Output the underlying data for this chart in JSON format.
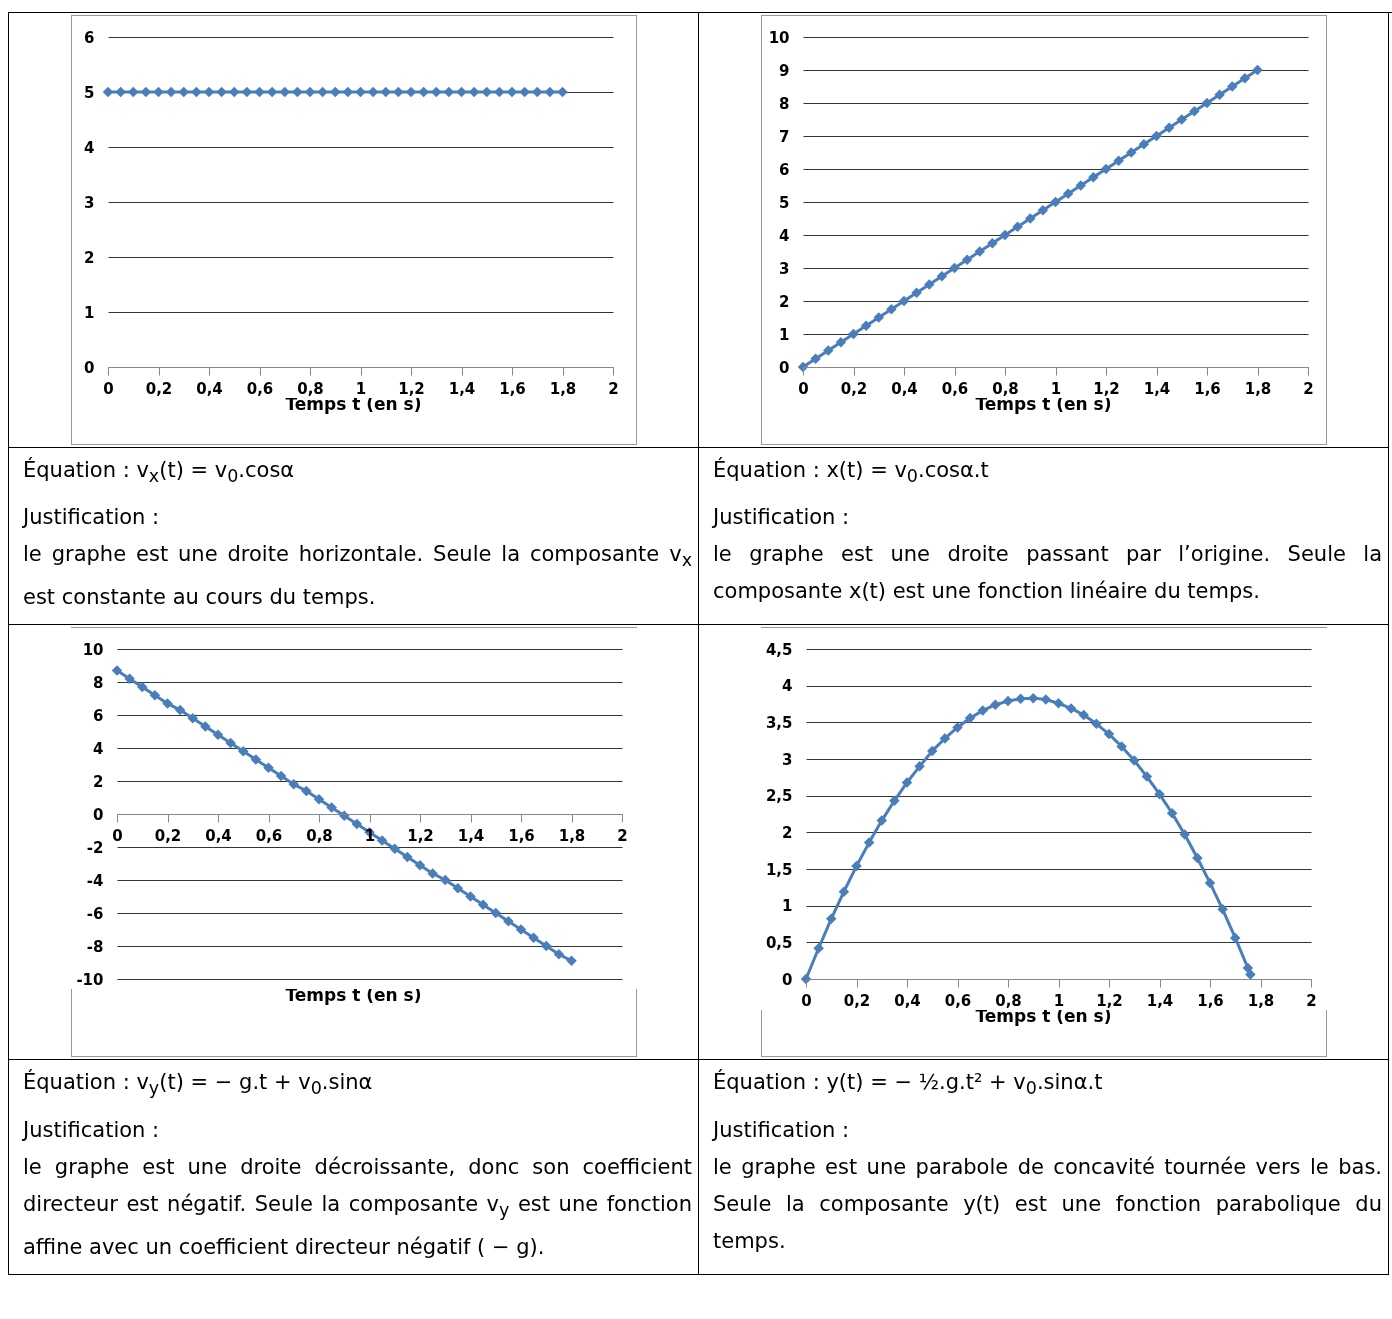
{
  "chart_data": [
    {
      "type": "line",
      "xlabel": "Temps  t (en s)",
      "marker": "diamond",
      "line_style": "solid",
      "grid": "y",
      "x": [
        0,
        0.05,
        0.1,
        0.15,
        0.2,
        0.25,
        0.3,
        0.35,
        0.4,
        0.45,
        0.5,
        0.55,
        0.6,
        0.65,
        0.7,
        0.75,
        0.8,
        0.85,
        0.9,
        0.95,
        1,
        1.05,
        1.1,
        1.15,
        1.2,
        1.25,
        1.3,
        1.35,
        1.4,
        1.45,
        1.5,
        1.55,
        1.6,
        1.65,
        1.7,
        1.75,
        1.8
      ],
      "series": [
        {
          "color": "#4a7ebb",
          "values": [
            5,
            5,
            5,
            5,
            5,
            5,
            5,
            5,
            5,
            5,
            5,
            5,
            5,
            5,
            5,
            5,
            5,
            5,
            5,
            5,
            5,
            5,
            5,
            5,
            5,
            5,
            5,
            5,
            5,
            5,
            5,
            5,
            5,
            5,
            5,
            5,
            5
          ]
        }
      ],
      "xlim": [
        0,
        2
      ],
      "xticks": [
        0,
        {
          "value": 0.2,
          "label": "0,2"
        },
        {
          "value": 0.4,
          "label": "0,4"
        },
        {
          "value": 0.6,
          "label": "0,6"
        },
        {
          "value": 0.8,
          "label": "0,8"
        },
        1,
        {
          "value": 1.2,
          "label": "1,2"
        },
        {
          "value": 1.4,
          "label": "1,4"
        },
        {
          "value": 1.6,
          "label": "1,6"
        },
        {
          "value": 1.8,
          "label": "1,8"
        },
        2
      ],
      "ylim": [
        0,
        6
      ],
      "yticks": [
        0,
        1,
        2,
        3,
        4,
        5,
        6
      ],
      "annotations": [
        "Équation : v$_{x}$(t)  =  v$_{0}$.cosα",
        "Justification :",
        "le graphe est une droite horizontale. Seule la composante v$_{x}$ est constante au cours du temps."
      ]
    },
    {
      "type": "line",
      "xlabel": "Temps  t (en s)",
      "marker": "diamond",
      "line_style": "solid",
      "grid": "y",
      "x": [
        0,
        0.05,
        0.1,
        0.15,
        0.2,
        0.25,
        0.3,
        0.35,
        0.4,
        0.45,
        0.5,
        0.55,
        0.6,
        0.65,
        0.7,
        0.75,
        0.8,
        0.85,
        0.9,
        0.95,
        1,
        1.05,
        1.1,
        1.15,
        1.2,
        1.25,
        1.3,
        1.35,
        1.4,
        1.45,
        1.5,
        1.55,
        1.6,
        1.65,
        1.7,
        1.75,
        1.8
      ],
      "series": [
        {
          "color": "#4a7ebb",
          "values": [
            0,
            0.25,
            0.5,
            0.75,
            1,
            1.25,
            1.5,
            1.75,
            2,
            2.25,
            2.5,
            2.75,
            3,
            3.25,
            3.5,
            3.75,
            4,
            4.25,
            4.5,
            4.75,
            5,
            5.25,
            5.5,
            5.75,
            6,
            6.25,
            6.5,
            6.75,
            7,
            7.25,
            7.5,
            7.75,
            8,
            8.25,
            8.5,
            8.75,
            9
          ]
        }
      ],
      "xlim": [
        0,
        2
      ],
      "xticks": [
        0,
        {
          "value": 0.2,
          "label": "0,2"
        },
        {
          "value": 0.4,
          "label": "0,4"
        },
        {
          "value": 0.6,
          "label": "0,6"
        },
        {
          "value": 0.8,
          "label": "0,8"
        },
        1,
        {
          "value": 1.2,
          "label": "1,2"
        },
        {
          "value": 1.4,
          "label": "1,4"
        },
        {
          "value": 1.6,
          "label": "1,6"
        },
        {
          "value": 1.8,
          "label": "1,8"
        },
        2
      ],
      "ylim": [
        0,
        10
      ],
      "yticks": [
        0,
        1,
        2,
        3,
        4,
        5,
        6,
        7,
        8,
        9,
        10
      ],
      "annotations": [
        "Équation : x(t)  =  v$_{0}$.cosα.t",
        "Justification :",
        "le graphe est une droite passant par l’origine. Seule la composante x(t) est une fonction linéaire du temps."
      ]
    },
    {
      "type": "line",
      "xlabel": "Temps  t (en s)",
      "marker": "diamond",
      "line_style": "solid",
      "grid": "y",
      "x": [
        0,
        0.05,
        0.1,
        0.15,
        0.2,
        0.25,
        0.3,
        0.35,
        0.4,
        0.45,
        0.5,
        0.55,
        0.6,
        0.65,
        0.7,
        0.75,
        0.8,
        0.85,
        0.9,
        0.95,
        1,
        1.05,
        1.1,
        1.15,
        1.2,
        1.25,
        1.3,
        1.35,
        1.4,
        1.45,
        1.5,
        1.55,
        1.6,
        1.65,
        1.7,
        1.75,
        1.8
      ],
      "series": [
        {
          "color": "#4a7ebb",
          "values": [
            8.7,
            8.2,
            7.7,
            7.2,
            6.7,
            6.3,
            5.8,
            5.3,
            4.8,
            4.3,
            3.8,
            3.3,
            2.8,
            2.3,
            1.8,
            1.4,
            0.9,
            0.4,
            -0.1,
            -0.6,
            -1.1,
            -1.6,
            -2.1,
            -2.6,
            -3.1,
            -3.6,
            -4.0,
            -4.5,
            -5.0,
            -5.5,
            -6.0,
            -6.5,
            -7.0,
            -7.5,
            -8.0,
            -8.5,
            -8.9
          ]
        }
      ],
      "xlim": [
        0,
        2
      ],
      "xticks": [
        0,
        {
          "value": 0.2,
          "label": "0,2"
        },
        {
          "value": 0.4,
          "label": "0,4"
        },
        {
          "value": 0.6,
          "label": "0,6"
        },
        {
          "value": 0.8,
          "label": "0,8"
        },
        1,
        {
          "value": 1.2,
          "label": "1,2"
        },
        {
          "value": 1.4,
          "label": "1,4"
        },
        {
          "value": 1.6,
          "label": "1,6"
        },
        {
          "value": 1.8,
          "label": "1,8"
        },
        2
      ],
      "ylim": [
        -10,
        10
      ],
      "yticks": [
        -10,
        -8,
        -6,
        -4,
        -2,
        0,
        2,
        4,
        6,
        8,
        10
      ],
      "annotations": [
        "Équation : v$_{y}$(t)  =  − g.t  +  v$_{0}$.sinα",
        "Justification :",
        "le graphe est une droite décroissante, donc son coefficient directeur est négatif. Seule la composante v$_{y}$ est une fonction affine avec un coefficient directeur négatif ( − g)."
      ]
    },
    {
      "type": "line",
      "xlabel": "Temps  t (en s)",
      "marker": "diamond",
      "line_style": "solid",
      "grid": "y",
      "x": [
        0,
        0.05,
        0.1,
        0.15,
        0.2,
        0.25,
        0.3,
        0.35,
        0.4,
        0.45,
        0.5,
        0.55,
        0.6,
        0.65,
        0.7,
        0.75,
        0.8,
        0.85,
        0.9,
        0.95,
        1,
        1.05,
        1.1,
        1.15,
        1.2,
        1.25,
        1.3,
        1.35,
        1.4,
        1.45,
        1.5,
        1.55,
        1.6,
        1.65,
        1.7,
        1.75,
        1.76
      ],
      "series": [
        {
          "color": "#4a7ebb",
          "values": [
            0,
            0.42,
            0.82,
            1.19,
            1.54,
            1.86,
            2.16,
            2.43,
            2.68,
            2.9,
            3.11,
            3.28,
            3.43,
            3.56,
            3.66,
            3.74,
            3.79,
            3.82,
            3.83,
            3.81,
            3.76,
            3.69,
            3.6,
            3.48,
            3.34,
            3.17,
            2.98,
            2.76,
            2.52,
            2.26,
            1.97,
            1.65,
            1.31,
            0.95,
            0.56,
            0.15,
            0.06
          ]
        }
      ],
      "xlim": [
        0,
        2
      ],
      "xticks": [
        0,
        {
          "value": 0.2,
          "label": "0,2"
        },
        {
          "value": 0.4,
          "label": "0,4"
        },
        {
          "value": 0.6,
          "label": "0,6"
        },
        {
          "value": 0.8,
          "label": "0,8"
        },
        1,
        {
          "value": 1.2,
          "label": "1,2"
        },
        {
          "value": 1.4,
          "label": "1,4"
        },
        {
          "value": 1.6,
          "label": "1,6"
        },
        {
          "value": 1.8,
          "label": "1,8"
        },
        2
      ],
      "ylim": [
        0,
        4.5
      ],
      "yticks": [
        0,
        {
          "value": 0.5,
          "label": "0,5"
        },
        1,
        {
          "value": 1.5,
          "label": "1,5"
        },
        2,
        {
          "value": 2.5,
          "label": "2,5"
        },
        3,
        {
          "value": 3.5,
          "label": "3,5"
        },
        4,
        {
          "value": 4.5,
          "label": "4,5"
        }
      ],
      "annotations": [
        "Équation : y(t)  =  − ½.g.t²  +  v$_{0}$.sinα.t",
        "Justification :",
        "le graphe est une parabole de concavité tournée vers le bas. Seule la composante y(t) est une fonction parabolique du temps."
      ]
    }
  ]
}
